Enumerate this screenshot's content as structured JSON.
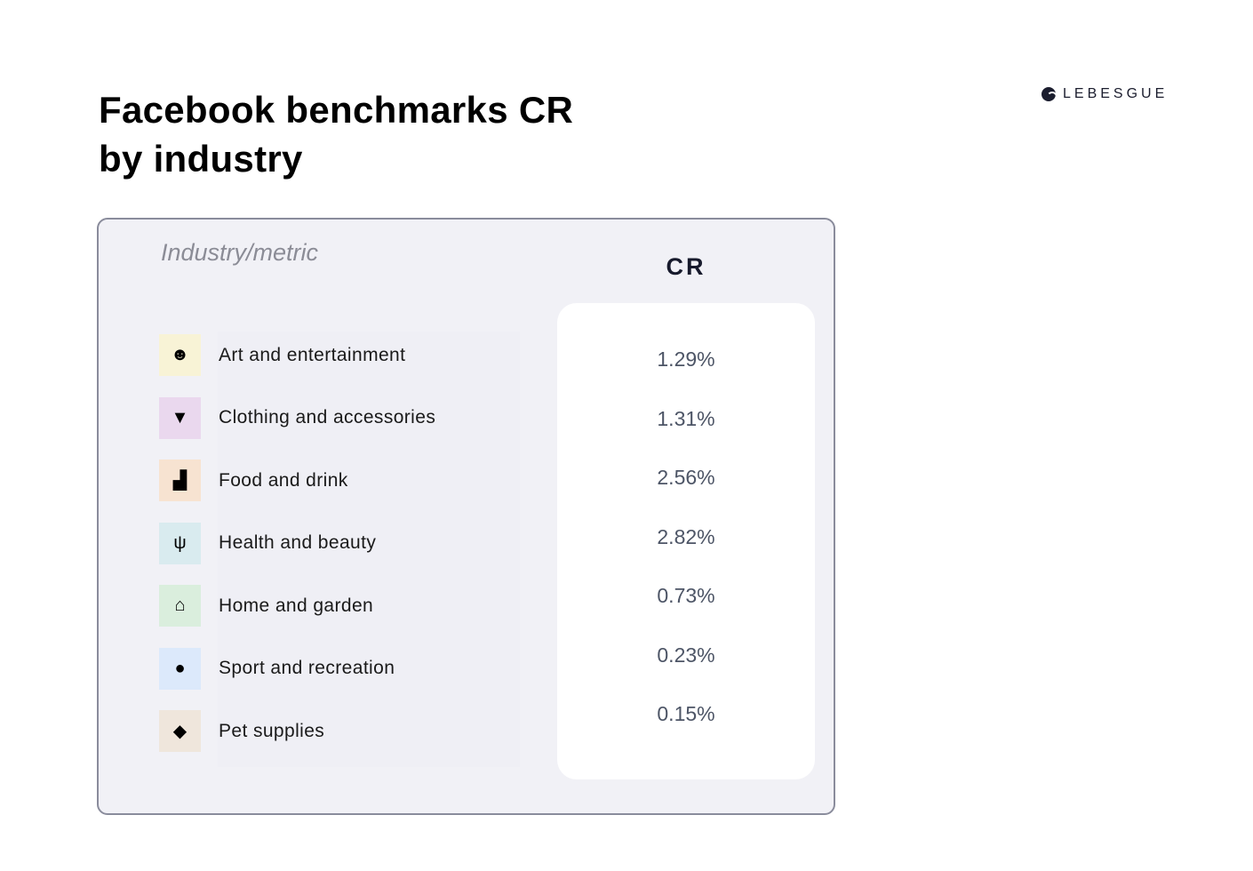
{
  "title_line1": "Facebook benchmarks CR",
  "title_line2": "by industry",
  "brand": "LEBESGUE",
  "table": {
    "header_industry": "Industry/metric",
    "header_metric": "CR",
    "rows": [
      {
        "label": "Art and entertainment",
        "value": "1.29%",
        "icon": "theater-masks-icon",
        "icon_bg": "#f8f3d6"
      },
      {
        "label": "Clothing and accessories",
        "value": "1.31%",
        "icon": "tshirt-icon",
        "icon_bg": "#ead8ee"
      },
      {
        "label": "Food and drink",
        "value": "2.56%",
        "icon": "burger-drink-icon",
        "icon_bg": "#f7e3d1"
      },
      {
        "label": "Health and beauty",
        "value": "2.82%",
        "icon": "lotus-icon",
        "icon_bg": "#d9ebef"
      },
      {
        "label": "Home and garden",
        "value": "0.73%",
        "icon": "house-tree-icon",
        "icon_bg": "#daeedd"
      },
      {
        "label": "Sport and recreation",
        "value": "0.23%",
        "icon": "basketball-icon",
        "icon_bg": "#dce9fb"
      },
      {
        "label": "Pet supplies",
        "value": "0.15%",
        "icon": "cat-icon",
        "icon_bg": "#efe6dc"
      }
    ]
  }
}
